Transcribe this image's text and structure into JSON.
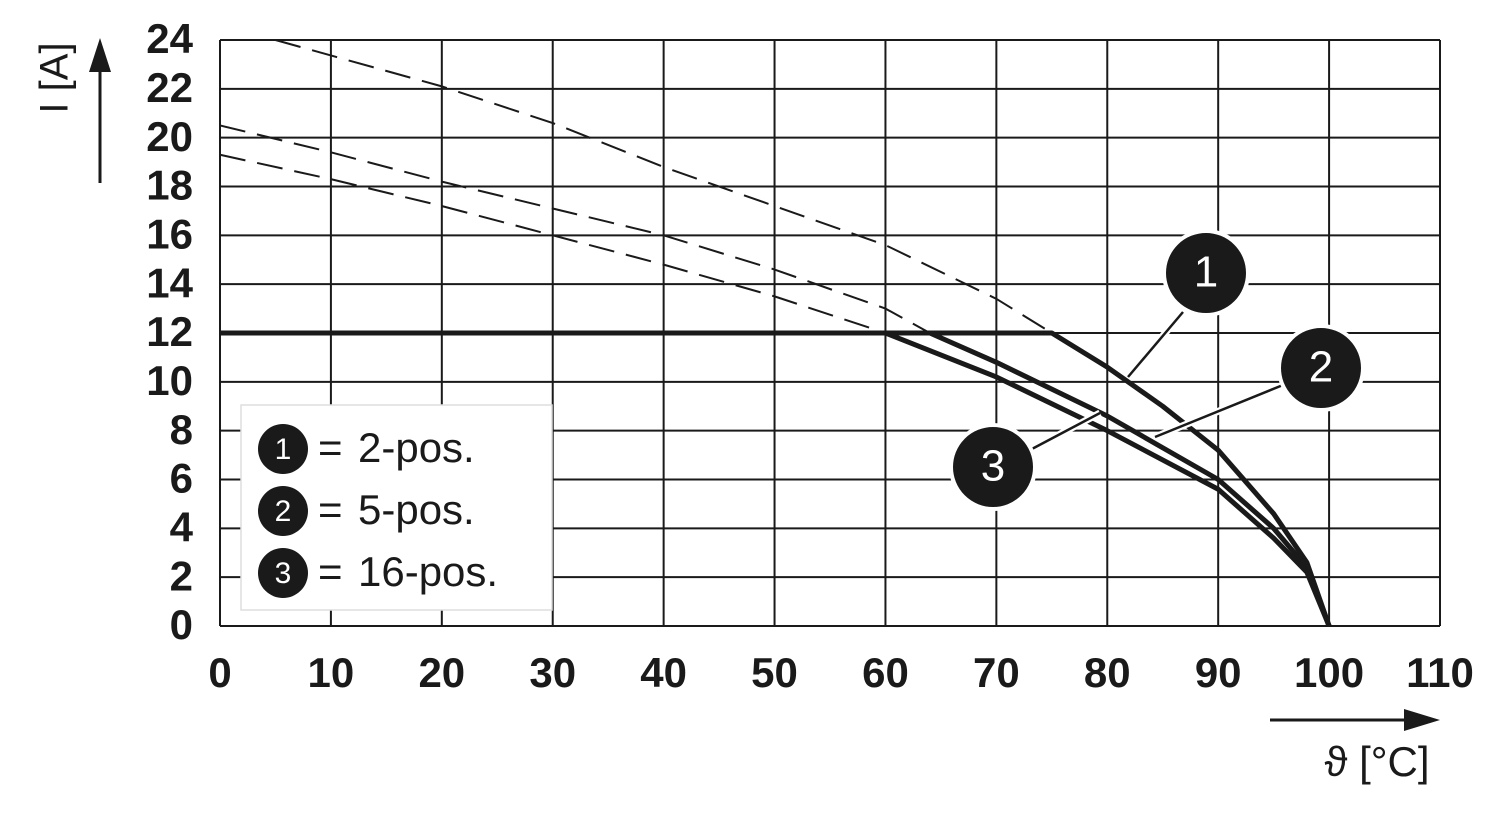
{
  "chart_data": {
    "type": "line",
    "xlabel": "ϑ [°C]",
    "ylabel": "I [A]",
    "xlim": [
      0,
      110
    ],
    "ylim": [
      0,
      24
    ],
    "xticks": [
      0,
      10,
      20,
      30,
      40,
      50,
      60,
      70,
      80,
      90,
      100,
      110
    ],
    "yticks": [
      0,
      2,
      4,
      6,
      8,
      10,
      12,
      14,
      16,
      18,
      20,
      22,
      24
    ],
    "grid": true,
    "legend": "lower left",
    "legend_sign": "=",
    "series": [
      {
        "name": "2-pos.",
        "label": "1",
        "color": "#1a1a1a",
        "x": [
          0,
          75,
          80,
          85,
          90,
          95,
          98,
          100
        ],
        "values": [
          12,
          12,
          10.6,
          9.0,
          7.2,
          4.6,
          2.6,
          0
        ],
        "dashed_x": [
          5,
          20,
          30,
          40,
          50,
          60,
          70,
          75
        ],
        "dashed_values": [
          24,
          22.1,
          20.6,
          18.8,
          17.2,
          15.6,
          13.4,
          12
        ]
      },
      {
        "name": "5-pos.",
        "label": "2",
        "color": "#1a1a1a",
        "x": [
          0,
          64,
          70,
          80,
          90,
          95,
          98,
          100
        ],
        "values": [
          12,
          12,
          10.8,
          8.6,
          6.0,
          4.0,
          2.4,
          0
        ],
        "dashed_x": [
          0,
          10,
          20,
          30,
          40,
          50,
          60,
          64
        ],
        "dashed_values": [
          20.5,
          19.4,
          18.2,
          17.1,
          16.0,
          14.6,
          13.0,
          12
        ]
      },
      {
        "name": "16-pos.",
        "label": "3",
        "color": "#1a1a1a",
        "x": [
          0,
          60,
          70,
          80,
          90,
          95,
          98,
          100
        ],
        "values": [
          12,
          12,
          10.2,
          8.0,
          5.6,
          3.6,
          2.2,
          0
        ],
        "dashed_x": [
          0,
          10,
          20,
          30,
          40,
          50,
          60
        ],
        "dashed_values": [
          19.3,
          18.3,
          17.2,
          16.0,
          14.8,
          13.5,
          12
        ]
      }
    ]
  }
}
